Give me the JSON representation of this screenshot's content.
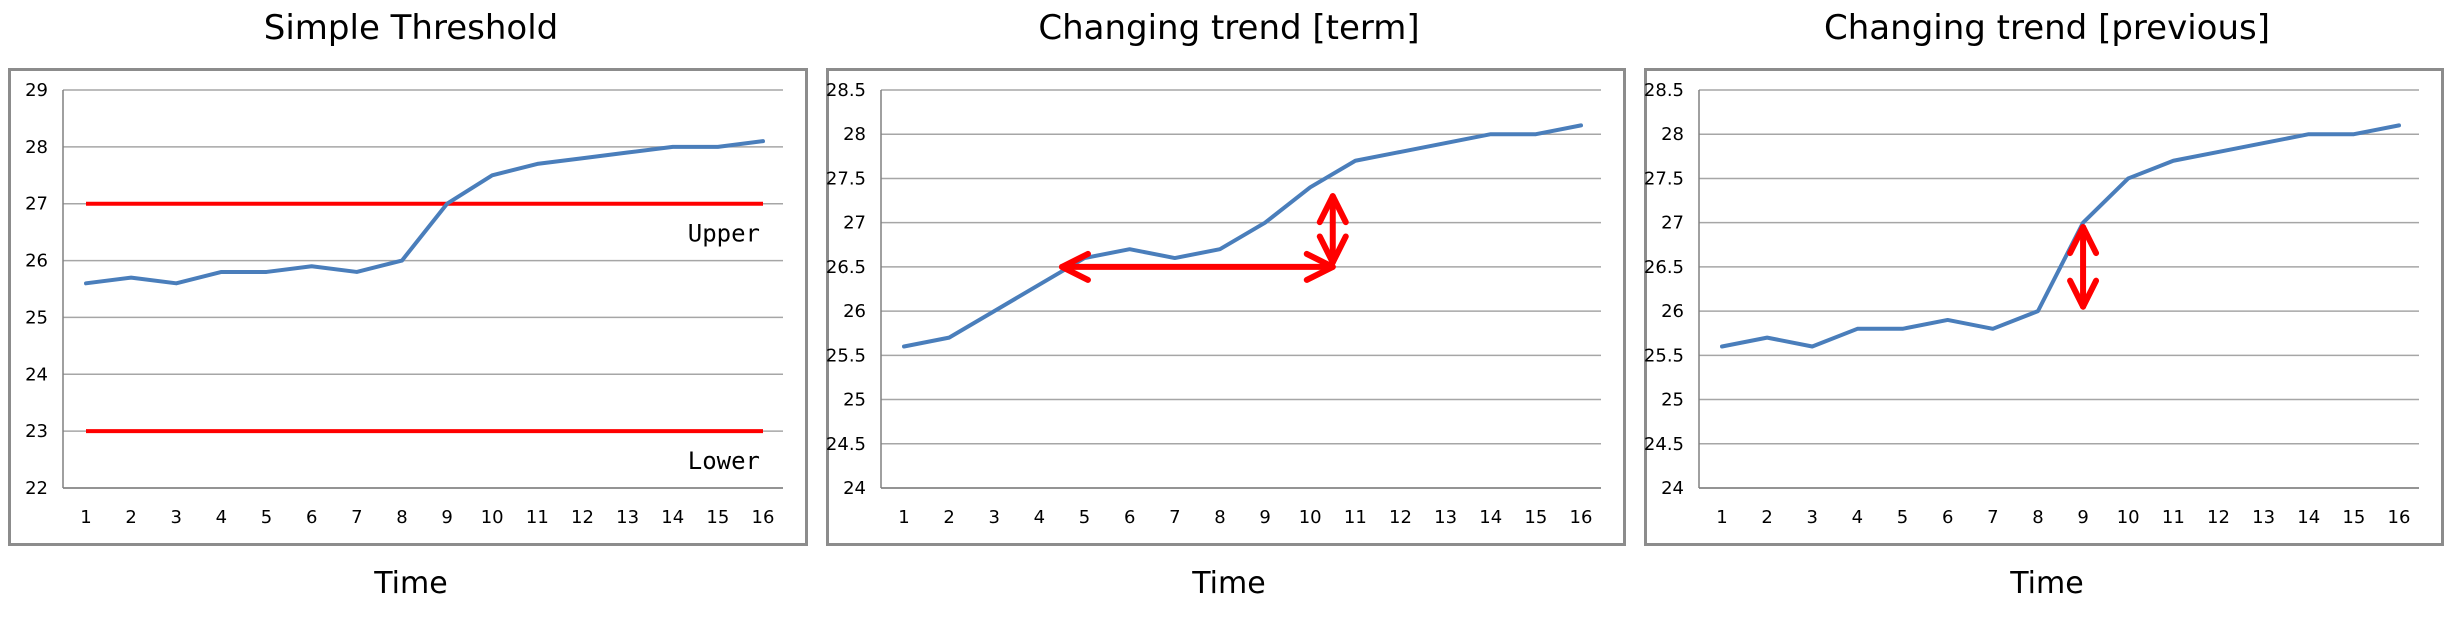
{
  "chart_data": [
    {
      "type": "line",
      "title": "Simple Threshold",
      "xlabel": "Time",
      "ylabel": "",
      "x": [
        1,
        2,
        3,
        4,
        5,
        6,
        7,
        8,
        9,
        10,
        11,
        12,
        13,
        14,
        15,
        16
      ],
      "ylim": [
        22,
        29
      ],
      "ytick_step": 1,
      "yticks": [
        "22",
        "23",
        "24",
        "25",
        "26",
        "27",
        "28",
        "29"
      ],
      "grid": true,
      "series": [
        {
          "values": [
            25.6,
            25.7,
            25.6,
            25.8,
            25.8,
            25.9,
            25.8,
            26.0,
            27.0,
            27.5,
            27.7,
            27.8,
            27.9,
            28.0,
            28.0,
            28.1
          ],
          "color": "#4a7ebb"
        }
      ],
      "hlines": [
        {
          "y": 27,
          "label": "Upper",
          "color": "#ff0000"
        },
        {
          "y": 23,
          "label": "Lower",
          "color": "#ff0000"
        }
      ],
      "arrows": []
    },
    {
      "type": "line",
      "title": "Changing trend [term]",
      "xlabel": "Time",
      "ylabel": "",
      "x": [
        1,
        2,
        3,
        4,
        5,
        6,
        7,
        8,
        9,
        10,
        11,
        12,
        13,
        14,
        15,
        16
      ],
      "ylim": [
        24,
        28.5
      ],
      "ytick_step": 0.5,
      "yticks": [
        "24",
        "24.5",
        "25",
        "25.5",
        "26",
        "26.5",
        "27",
        "27.5",
        "28",
        "28.5"
      ],
      "grid": true,
      "series": [
        {
          "values": [
            25.6,
            25.7,
            26.0,
            26.3,
            26.6,
            26.7,
            26.6,
            26.7,
            27.0,
            27.4,
            27.7,
            27.8,
            27.9,
            28.0,
            28.0,
            28.1
          ],
          "color": "#4a7ebb"
        }
      ],
      "hlines": [],
      "arrows": [
        {
          "x1": 4.5,
          "y1": 26.5,
          "x2": 10.5,
          "y2": 26.5,
          "color": "#ff0000"
        },
        {
          "x1": 10.5,
          "y1": 26.55,
          "x2": 10.5,
          "y2": 27.3,
          "color": "#ff0000"
        }
      ]
    },
    {
      "type": "line",
      "title": "Changing trend [previous]",
      "xlabel": "Time",
      "ylabel": "",
      "x": [
        1,
        2,
        3,
        4,
        5,
        6,
        7,
        8,
        9,
        10,
        11,
        12,
        13,
        14,
        15,
        16
      ],
      "ylim": [
        24,
        28.5
      ],
      "ytick_step": 0.5,
      "yticks": [
        "24",
        "24.5",
        "25",
        "25.5",
        "26",
        "26.5",
        "27",
        "27.5",
        "28",
        "28.5"
      ],
      "grid": true,
      "series": [
        {
          "values": [
            25.6,
            25.7,
            25.6,
            25.8,
            25.8,
            25.9,
            25.8,
            26.0,
            27.0,
            27.5,
            27.7,
            27.8,
            27.9,
            28.0,
            28.0,
            28.1
          ],
          "color": "#4a7ebb"
        }
      ],
      "hlines": [],
      "arrows": [
        {
          "x1": 9,
          "y1": 26.05,
          "x2": 9,
          "y2": 26.95,
          "color": "#ff0000"
        }
      ]
    }
  ]
}
